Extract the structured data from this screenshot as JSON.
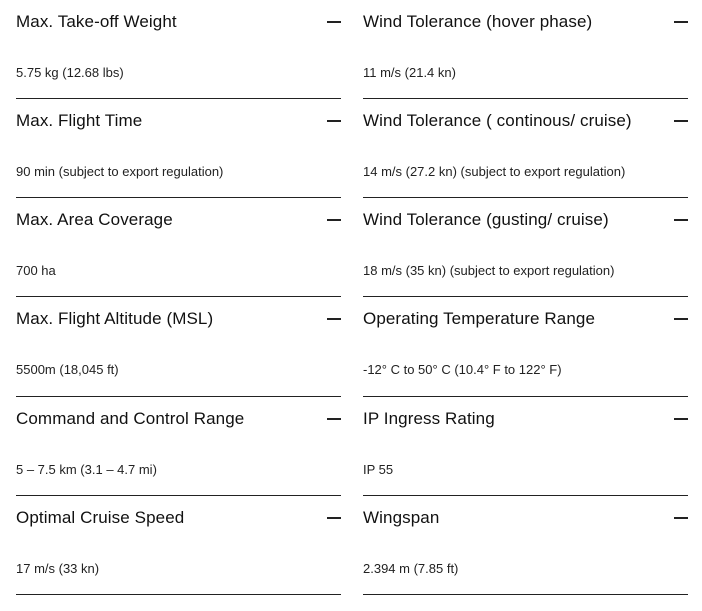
{
  "left": [
    {
      "title": "Max. Take-off Weight",
      "value": "5.75 kg (12.68 lbs)"
    },
    {
      "title": "Max. Flight Time",
      "value": "90 min (subject to export regulation)"
    },
    {
      "title": "Max. Area Coverage",
      "value": "700 ha"
    },
    {
      "title": "Max. Flight Altitude (MSL)",
      "value": "5500m (18,045 ft)"
    },
    {
      "title": "Command and Control Range",
      "value": "5 – 7.5 km (3.1 – 4.7 mi)"
    },
    {
      "title": "Optimal Cruise Speed",
      "value": "17 m/s (33 kn)"
    }
  ],
  "right": [
    {
      "title": "Wind Tolerance (hover phase)",
      "value": "11 m/s (21.4 kn)"
    },
    {
      "title": "Wind Tolerance ( continous/ cruise)",
      "value": "14 m/s (27.2 kn) (subject to export regulation)"
    },
    {
      "title": "Wind Tolerance (gusting/ cruise)",
      "value": "18 m/s (35 kn) (subject to export regulation)"
    },
    {
      "title": "Operating Temperature Range",
      "value": "-12° C to 50° C (10.4° F to 122° F)"
    },
    {
      "title": "IP Ingress Rating",
      "value": "IP 55"
    },
    {
      "title": "Wingspan",
      "value": "2.394 m (7.85 ft)"
    }
  ],
  "toggle_icon": "minus-icon"
}
